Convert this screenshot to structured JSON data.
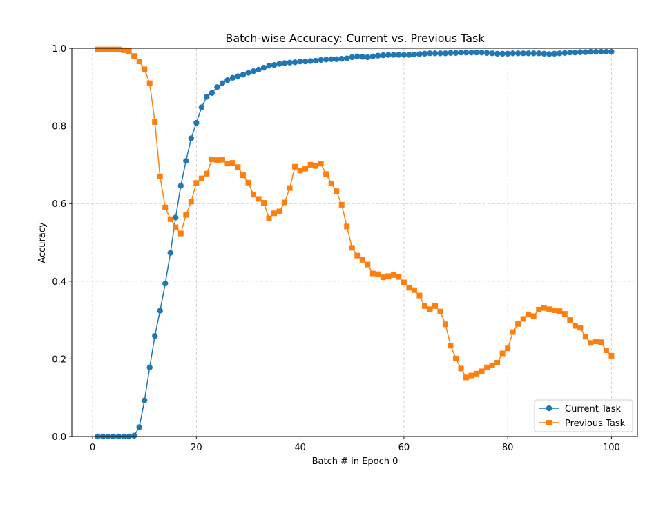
{
  "chart_data": {
    "type": "line",
    "title": "Batch-wise Accuracy: Current vs. Previous Task",
    "xlabel": "Batch # in Epoch 0",
    "ylabel": "Accuracy",
    "xlim": [
      -4,
      105
    ],
    "ylim": [
      0.0,
      1.0
    ],
    "xticks": [
      0,
      20,
      40,
      60,
      80,
      100
    ],
    "xtick_labels": [
      "0",
      "20",
      "40",
      "60",
      "80",
      "100"
    ],
    "yticks": [
      0.0,
      0.2,
      0.4,
      0.6,
      0.8,
      1.0
    ],
    "ytick_labels": [
      "0.0",
      "0.2",
      "0.4",
      "0.6",
      "0.8",
      "1.0"
    ],
    "grid": true,
    "legend_position": "lower-right",
    "x": [
      1,
      2,
      3,
      4,
      5,
      6,
      7,
      8,
      9,
      10,
      11,
      12,
      13,
      14,
      15,
      16,
      17,
      18,
      19,
      20,
      21,
      22,
      23,
      24,
      25,
      26,
      27,
      28,
      29,
      30,
      31,
      32,
      33,
      34,
      35,
      36,
      37,
      38,
      39,
      40,
      41,
      42,
      43,
      44,
      45,
      46,
      47,
      48,
      49,
      50,
      51,
      52,
      53,
      54,
      55,
      56,
      57,
      58,
      59,
      60,
      61,
      62,
      63,
      64,
      65,
      66,
      67,
      68,
      69,
      70,
      71,
      72,
      73,
      74,
      75,
      76,
      77,
      78,
      79,
      80,
      81,
      82,
      83,
      84,
      85,
      86,
      87,
      88,
      89,
      90,
      91,
      92,
      93,
      94,
      95,
      96,
      97,
      98,
      99,
      100
    ],
    "series": [
      {
        "name": "Current Task",
        "color": "#1f77b4",
        "marker": "circle",
        "values": [
          0.0,
          0.0,
          0.0,
          0.0,
          0.0,
          0.0,
          0.0,
          0.002,
          0.024,
          0.093,
          0.178,
          0.259,
          0.324,
          0.394,
          0.473,
          0.564,
          0.646,
          0.71,
          0.768,
          0.808,
          0.848,
          0.875,
          0.885,
          0.9,
          0.91,
          0.918,
          0.924,
          0.928,
          0.932,
          0.937,
          0.941,
          0.945,
          0.95,
          0.955,
          0.957,
          0.96,
          0.962,
          0.963,
          0.964,
          0.966,
          0.966,
          0.967,
          0.968,
          0.97,
          0.971,
          0.972,
          0.972,
          0.973,
          0.974,
          0.977,
          0.979,
          0.978,
          0.977,
          0.979,
          0.981,
          0.982,
          0.983,
          0.983,
          0.983,
          0.983,
          0.983,
          0.984,
          0.985,
          0.986,
          0.987,
          0.987,
          0.987,
          0.987,
          0.988,
          0.988,
          0.989,
          0.989,
          0.989,
          0.989,
          0.989,
          0.988,
          0.987,
          0.986,
          0.986,
          0.986,
          0.987,
          0.987,
          0.987,
          0.987,
          0.987,
          0.987,
          0.986,
          0.985,
          0.986,
          0.987,
          0.988,
          0.989,
          0.989,
          0.99,
          0.99,
          0.991,
          0.991,
          0.991,
          0.991,
          0.991
        ]
      },
      {
        "name": "Previous Task",
        "color": "#ff7f0e",
        "marker": "square",
        "values": [
          0.997,
          0.997,
          0.997,
          0.997,
          0.997,
          0.995,
          0.992,
          0.98,
          0.966,
          0.946,
          0.91,
          0.81,
          0.67,
          0.59,
          0.56,
          0.539,
          0.523,
          0.571,
          0.605,
          0.653,
          0.665,
          0.677,
          0.714,
          0.712,
          0.713,
          0.703,
          0.705,
          0.694,
          0.673,
          0.654,
          0.623,
          0.612,
          0.602,
          0.562,
          0.575,
          0.58,
          0.603,
          0.64,
          0.695,
          0.685,
          0.69,
          0.7,
          0.697,
          0.703,
          0.676,
          0.652,
          0.632,
          0.597,
          0.541,
          0.486,
          0.466,
          0.455,
          0.443,
          0.42,
          0.418,
          0.41,
          0.413,
          0.416,
          0.411,
          0.397,
          0.383,
          0.377,
          0.363,
          0.336,
          0.328,
          0.336,
          0.322,
          0.289,
          0.234,
          0.201,
          0.175,
          0.152,
          0.157,
          0.162,
          0.168,
          0.178,
          0.183,
          0.19,
          0.214,
          0.227,
          0.269,
          0.29,
          0.303,
          0.314,
          0.31,
          0.327,
          0.331,
          0.328,
          0.325,
          0.323,
          0.316,
          0.3,
          0.285,
          0.28,
          0.257,
          0.241,
          0.245,
          0.243,
          0.222,
          0.208
        ]
      }
    ]
  }
}
